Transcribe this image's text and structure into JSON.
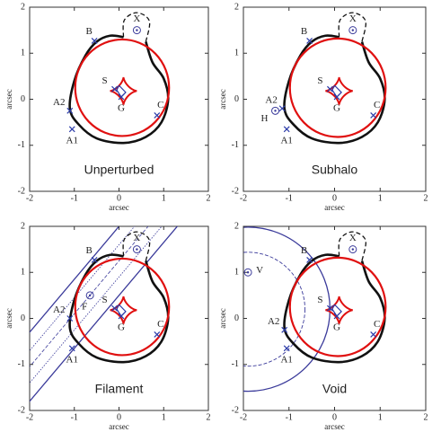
{
  "chart_data": [
    {
      "type": "lens",
      "title": "Unperturbed",
      "xlabel": "arcsec",
      "ylabel": "arcsec",
      "xlim": [
        -2,
        2
      ],
      "ylim": [
        -2,
        2
      ],
      "xticks": [
        -2,
        -1,
        0,
        1,
        2
      ],
      "yticks": [
        -2,
        -1,
        0,
        1,
        2
      ],
      "points": [
        {
          "label": "B",
          "x": -0.55,
          "y": 1.27,
          "marker": "cross"
        },
        {
          "label": "X",
          "x": 0.4,
          "y": 1.5,
          "marker": "circle"
        },
        {
          "label": "S",
          "x": -0.1,
          "y": 0.22,
          "marker": "cross"
        },
        {
          "label": "G",
          "x": 0.05,
          "y": 0.05,
          "marker": "cross"
        },
        {
          "label": "C",
          "x": 0.85,
          "y": -0.35,
          "marker": "cross"
        },
        {
          "label": "A2",
          "x": -1.1,
          "y": -0.25,
          "marker": "cross"
        },
        {
          "label": "A1",
          "x": -1.05,
          "y": -0.65,
          "marker": "cross"
        }
      ]
    },
    {
      "type": "lens",
      "title": "Subhalo",
      "xlabel": "arcsec",
      "ylabel": "arcsec",
      "xlim": [
        -2,
        2
      ],
      "ylim": [
        -2,
        2
      ],
      "xticks": [
        -2,
        -1,
        0,
        1,
        2
      ],
      "yticks": [
        -2,
        -1,
        0,
        1,
        2
      ],
      "points": [
        {
          "label": "B",
          "x": -0.55,
          "y": 1.27,
          "marker": "cross"
        },
        {
          "label": "X",
          "x": 0.4,
          "y": 1.5,
          "marker": "circle"
        },
        {
          "label": "S",
          "x": -0.1,
          "y": 0.22,
          "marker": "cross"
        },
        {
          "label": "G",
          "x": 0.05,
          "y": 0.05,
          "marker": "cross"
        },
        {
          "label": "C",
          "x": 0.85,
          "y": -0.35,
          "marker": "cross"
        },
        {
          "label": "A2",
          "x": -1.15,
          "y": -0.2,
          "marker": "cross"
        },
        {
          "label": "A1",
          "x": -1.05,
          "y": -0.65,
          "marker": "cross"
        },
        {
          "label": "H",
          "x": -1.3,
          "y": -0.25,
          "marker": "circle"
        }
      ]
    },
    {
      "type": "filament",
      "title": "Filament",
      "xlabel": "arcsec",
      "ylabel": "arcsec",
      "xlim": [
        -2,
        2
      ],
      "ylim": [
        -2,
        2
      ],
      "xticks": [
        -2,
        -1,
        0,
        1,
        2
      ],
      "yticks": [
        -2,
        -1,
        0,
        1,
        2
      ],
      "points": [
        {
          "label": "B",
          "x": -0.55,
          "y": 1.27,
          "marker": "cross"
        },
        {
          "label": "X",
          "x": 0.4,
          "y": 1.5,
          "marker": "circle"
        },
        {
          "label": "S",
          "x": -0.1,
          "y": 0.22,
          "marker": "cross"
        },
        {
          "label": "G",
          "x": 0.05,
          "y": 0.05,
          "marker": "cross"
        },
        {
          "label": "C",
          "x": 0.85,
          "y": -0.35,
          "marker": "cross"
        },
        {
          "label": "A2",
          "x": -1.1,
          "y": 0.0,
          "marker": "cross"
        },
        {
          "label": "A1",
          "x": -1.05,
          "y": -0.65,
          "marker": "cross"
        },
        {
          "label": "F",
          "x": -0.65,
          "y": 0.5,
          "marker": "circle"
        }
      ]
    },
    {
      "type": "void",
      "title": "Void",
      "xlabel": "arcsec",
      "ylabel": "arcsec",
      "xlim": [
        -2,
        2
      ],
      "ylim": [
        -2,
        2
      ],
      "xticks": [
        -2,
        -1,
        0,
        1,
        2
      ],
      "yticks": [
        -2,
        -1,
        0,
        1,
        2
      ],
      "points": [
        {
          "label": "B",
          "x": -0.55,
          "y": 1.27,
          "marker": "cross"
        },
        {
          "label": "X",
          "x": 0.4,
          "y": 1.5,
          "marker": "circle"
        },
        {
          "label": "S",
          "x": -0.1,
          "y": 0.22,
          "marker": "cross"
        },
        {
          "label": "G",
          "x": 0.05,
          "y": 0.05,
          "marker": "cross"
        },
        {
          "label": "C",
          "x": 0.85,
          "y": -0.35,
          "marker": "cross"
        },
        {
          "label": "A2",
          "x": -1.1,
          "y": -0.25,
          "marker": "cross"
        },
        {
          "label": "A1",
          "x": -1.05,
          "y": -0.65,
          "marker": "cross"
        },
        {
          "label": "V",
          "x": -1.9,
          "y": 1.0,
          "marker": "circle"
        }
      ]
    }
  ]
}
